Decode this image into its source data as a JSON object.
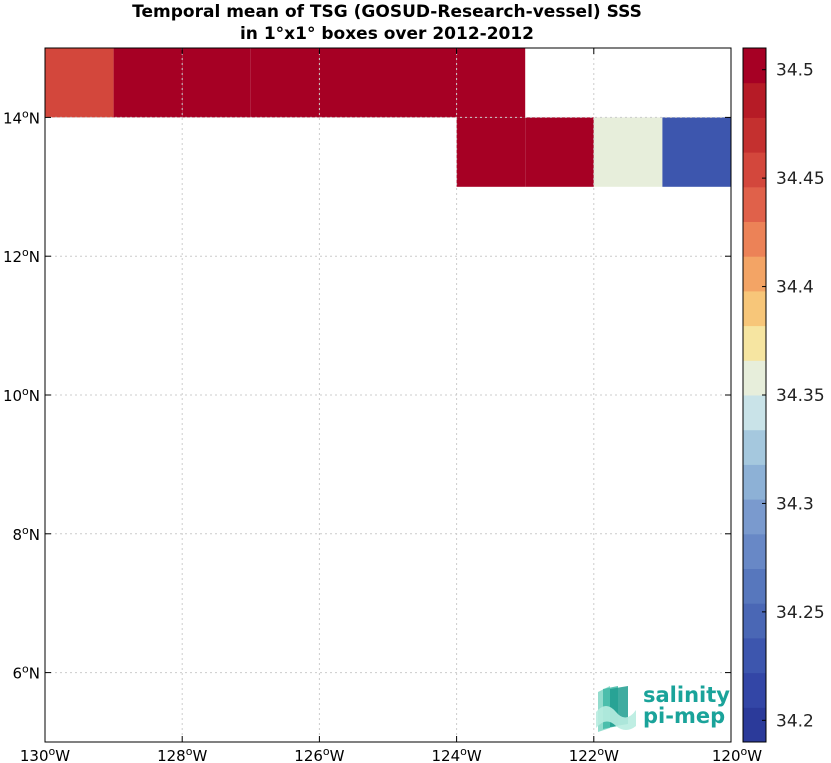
{
  "chart_data": {
    "type": "heatmap",
    "title_line1": "Temporal mean of TSG (GOSUD-Research-vessel) SSS",
    "title_line2": "in 1°x1° boxes over 2012-2012",
    "xlim": [
      -130,
      -120
    ],
    "ylim": [
      5,
      15
    ],
    "x_ticks": [
      {
        "value": -130,
        "num": "130",
        "sup": "o",
        "hem": "W"
      },
      {
        "value": -128,
        "num": "128",
        "sup": "o",
        "hem": "W"
      },
      {
        "value": -126,
        "num": "126",
        "sup": "o",
        "hem": "W"
      },
      {
        "value": -124,
        "num": "124",
        "sup": "o",
        "hem": "W"
      },
      {
        "value": -122,
        "num": "122",
        "sup": "o",
        "hem": "W"
      },
      {
        "value": -120,
        "num": "120",
        "sup": "o",
        "hem": "W"
      }
    ],
    "y_ticks": [
      {
        "value": 6,
        "num": "6",
        "sup": "o",
        "hem": "N"
      },
      {
        "value": 8,
        "num": "8",
        "sup": "o",
        "hem": "N"
      },
      {
        "value": 10,
        "num": "10",
        "sup": "o",
        "hem": "N"
      },
      {
        "value": 12,
        "num": "12",
        "sup": "o",
        "hem": "N"
      },
      {
        "value": 14,
        "num": "14",
        "sup": "o",
        "hem": "N"
      }
    ],
    "grid": true,
    "cells": [
      {
        "lon": -130,
        "lat": 14,
        "value": 34.46
      },
      {
        "lon": -129,
        "lat": 14,
        "value": 34.5
      },
      {
        "lon": -128,
        "lat": 14,
        "value": 34.5
      },
      {
        "lon": -127,
        "lat": 14,
        "value": 34.5
      },
      {
        "lon": -126,
        "lat": 14,
        "value": 34.5
      },
      {
        "lon": -125,
        "lat": 14,
        "value": 34.5
      },
      {
        "lon": -124,
        "lat": 14,
        "value": 34.5
      },
      {
        "lon": -124,
        "lat": 13,
        "value": 34.5
      },
      {
        "lon": -123,
        "lat": 13,
        "value": 34.5
      },
      {
        "lon": -122,
        "lat": 13,
        "value": 34.35
      },
      {
        "lon": -121,
        "lat": 13,
        "value": 34.23
      }
    ],
    "colorbar": {
      "range": [
        34.19,
        34.51
      ],
      "ticks": [
        {
          "value": 34.2,
          "label": "34.2"
        },
        {
          "value": 34.25,
          "label": "34.25"
        },
        {
          "value": 34.3,
          "label": "34.3"
        },
        {
          "value": 34.35,
          "label": "34.35"
        },
        {
          "value": 34.4,
          "label": "34.4"
        },
        {
          "value": 34.45,
          "label": "34.45"
        },
        {
          "value": 34.5,
          "label": "34.5"
        }
      ],
      "colors": [
        "#2b3a9a",
        "#3346a6",
        "#3d56ae",
        "#4a67b5",
        "#5777bd",
        "#6888c6",
        "#7a9ace",
        "#8db1d6",
        "#a5c8de",
        "#c9e3e8",
        "#e7eedb",
        "#f6e5a1",
        "#f7c679",
        "#f3a465",
        "#ec8257",
        "#e0614a",
        "#d3473c",
        "#c4302f",
        "#b61b26",
        "#a60024"
      ]
    },
    "logo": {
      "line1": "salinity",
      "line2": "pi-mep"
    }
  }
}
